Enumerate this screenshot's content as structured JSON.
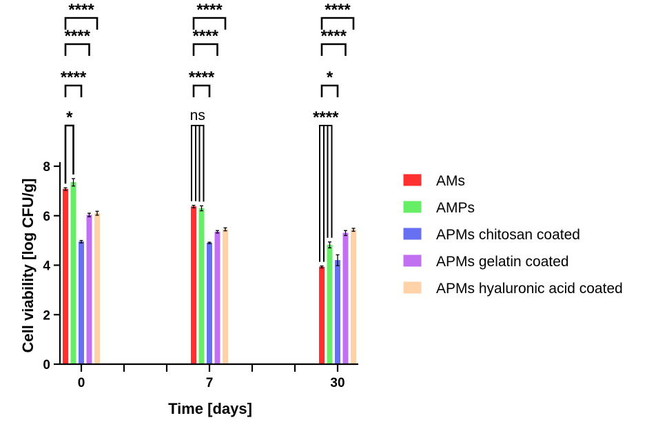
{
  "chart_data": {
    "type": "bar",
    "title": "",
    "xlabel": "Time [days]",
    "ylabel": "Cell viability [log CFU/g]",
    "ylim": [
      0,
      8
    ],
    "yticks": [
      "0",
      "2",
      "4",
      "6",
      "8"
    ],
    "categories": [
      "0",
      "7",
      "30"
    ],
    "legend_position": "right",
    "grid": false,
    "series": [
      {
        "name": "AMs",
        "color": "#ff3030",
        "values": [
          7.08,
          6.37,
          3.93
        ],
        "errors": [
          0.05,
          0.05,
          0.04
        ]
      },
      {
        "name": "AMPs",
        "color": "#66ee66",
        "values": [
          7.35,
          6.3,
          4.82
        ],
        "errors": [
          0.15,
          0.1,
          0.12
        ]
      },
      {
        "name": "APMs chitosan coated",
        "color": "#6670f0",
        "values": [
          4.95,
          4.9,
          4.2
        ],
        "errors": [
          0.05,
          0.03,
          0.22
        ]
      },
      {
        "name": "APMs gelatin coated",
        "color": "#c070f0",
        "values": [
          6.03,
          5.35,
          5.3
        ],
        "errors": [
          0.07,
          0.05,
          0.1
        ]
      },
      {
        "name": "APMs hyaluronic acid coated",
        "color": "#ffd2a8",
        "values": [
          6.1,
          5.45,
          5.43
        ],
        "errors": [
          0.08,
          0.06,
          0.06
        ]
      }
    ],
    "significance": [
      {
        "category": 0,
        "from": 0,
        "to": 1,
        "label": "*"
      },
      {
        "category": 0,
        "from": 0,
        "to": 2,
        "label": "****"
      },
      {
        "category": 0,
        "from": 0,
        "to": 3,
        "label": "****"
      },
      {
        "category": 0,
        "from": 0,
        "to": 4,
        "label": "****"
      },
      {
        "category": 1,
        "from": 0,
        "to": 1,
        "label": "ns"
      },
      {
        "category": 1,
        "from": 0,
        "to": 2,
        "label": "****"
      },
      {
        "category": 1,
        "from": 0,
        "to": 3,
        "label": "****"
      },
      {
        "category": 1,
        "from": 0,
        "to": 4,
        "label": "****"
      },
      {
        "category": 2,
        "from": 0,
        "to": 1,
        "label": "****"
      },
      {
        "category": 2,
        "from": 0,
        "to": 2,
        "label": "*"
      },
      {
        "category": 2,
        "from": 0,
        "to": 3,
        "label": "****"
      },
      {
        "category": 2,
        "from": 0,
        "to": 4,
        "label": "****"
      }
    ]
  }
}
